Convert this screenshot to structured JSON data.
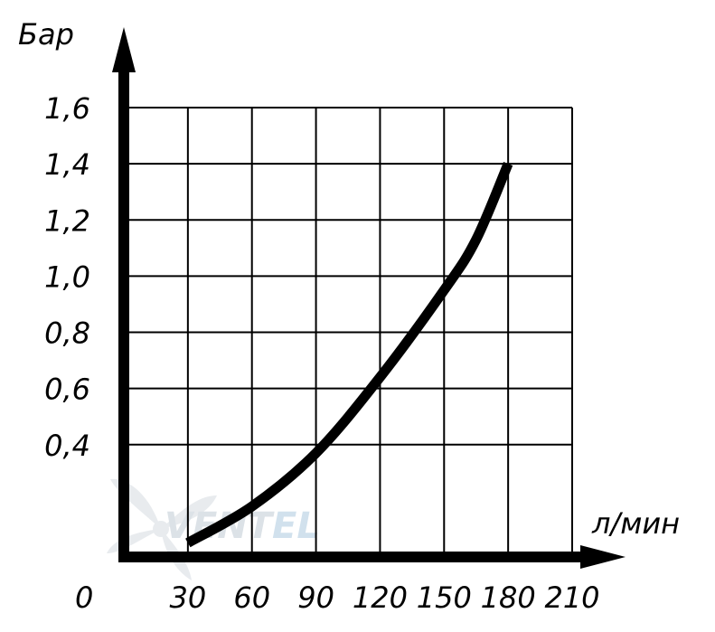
{
  "chart_data": {
    "type": "line",
    "xlabel": "л/мин",
    "ylabel": "Бар",
    "origin_label": "0",
    "x_ticks": [
      "30",
      "60",
      "90",
      "120",
      "150",
      "180",
      "210"
    ],
    "y_ticks": [
      "0,4",
      "0,6",
      "0,8",
      "1,0",
      "1,2",
      "1,4",
      "1,6"
    ],
    "xlim": [
      0,
      210
    ],
    "ylim": [
      0,
      1.6
    ],
    "grid": true,
    "series": [
      {
        "x": [
          30,
          60,
          90,
          120,
          150,
          165,
          180
        ],
        "y": [
          0.05,
          0.18,
          0.37,
          0.64,
          0.95,
          1.13,
          1.4
        ]
      }
    ]
  },
  "watermark": {
    "text_main": "VENT",
    "text_accent": "EL",
    "color_main": "#d6dde3",
    "color_accent": "#c9dcea"
  },
  "colors": {
    "axes": "#000000",
    "grid": "#000000",
    "curve": "#000000",
    "background": "#ffffff"
  }
}
